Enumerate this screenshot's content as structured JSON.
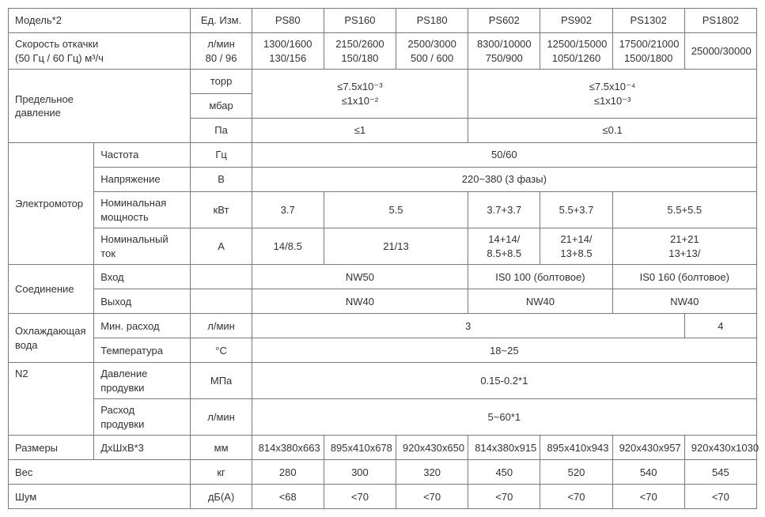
{
  "hdr": {
    "model": "Модель*2",
    "unit": "Ед. Изм.",
    "m0": "PS80",
    "m1": "PS160",
    "m2": "PS180",
    "m3": "PS602",
    "m4": "PS902",
    "m5": "PS1302",
    "m6": "PS1802"
  },
  "pump": {
    "label": "Скорость откачки\n(50 Гц / 60 Гц)   м³/ч",
    "label_l1": "Скорость откачки",
    "label_l2": "(50 Гц / 60 Гц)   м³/ч",
    "unit_l1": "л/мин",
    "unit_l2": "80 / 96",
    "v0_l1": "1300/1600",
    "v0_l2": "130/156",
    "v1_l1": "2150/2600",
    "v1_l2": "150/180",
    "v2_l1": "2500/3000",
    "v2_l2": "500 / 600",
    "v3_l1": "8300/10000",
    "v3_l2": "750/900",
    "v4_l1": "12500/15000",
    "v4_l2": "1050/1260",
    "v5_l1": "17500/21000",
    "v5_l2": "1500/1800",
    "v6_l1": "25000/30000",
    "v6_l2": ""
  },
  "limP": {
    "label_l1": "Предельное",
    "label_l2": "давление",
    "u1": "торр",
    "u2": "мбар",
    "u3": "Па",
    "torr_a": "≤7.5x10⁻³",
    "torr_b": "≤7.5x10⁻⁴",
    "mbar_a": "≤1x10⁻²",
    "mbar_b": "≤1x10⁻³",
    "pa_a": "≤1",
    "pa_b": "≤0.1"
  },
  "motor": {
    "label": "Электромотор",
    "freq_l": "Частота",
    "freq_u": "Гц",
    "freq_v": "50/60",
    "volt_l": "Напряжение",
    "volt_u": "В",
    "volt_v": "220~380 (3 фазы)",
    "pow_l_l1": "Номинальная",
    "pow_l_l2": "мощность",
    "pow_u": "кВт",
    "pow_v0": "3.7",
    "pow_v12": "5.5",
    "pow_v3": "3.7+3.7",
    "pow_v4": "5.5+3.7",
    "pow_v56": "5.5+5.5",
    "cur_l_l1": "Номинальный",
    "cur_l_l2": "ток",
    "cur_u": "А",
    "cur_v0": "14/8.5",
    "cur_v12": "21/13",
    "cur_v3_l1": "14+14/",
    "cur_v3_l2": "8.5+8.5",
    "cur_v4_l1": "21+14/",
    "cur_v4_l2": "13+8.5",
    "cur_v56_l1": "21+21",
    "cur_v56_l2": "13+13/"
  },
  "conn": {
    "label": "Соединение",
    "in_l": "Вход",
    "out_l": "Выход",
    "in_a": "NW50",
    "in_b": "IS0 100 (болтовое)",
    "in_c": "IS0 160 (болтовое)",
    "out_a": "NW40",
    "out_b": "NW40",
    "out_c": "NW40"
  },
  "cool": {
    "label_l1": "Охлаждающая",
    "label_l2": "вода",
    "flow_l": "Мин. расход",
    "flow_u": "л/мин",
    "flow_a": "3",
    "flow_b": "4",
    "temp_l": "Температура",
    "temp_u": "°С",
    "temp_v": "18~25"
  },
  "n2": {
    "label": "N2",
    "pres_l_l1": "Давление",
    "pres_l_l2": "продувки",
    "pres_u": "МПа",
    "pres_v": "0.15-0.2*1",
    "flow_l_l1": "Расход",
    "flow_l_l2": "продувки",
    "flow_u": "л/мин",
    "flow_v": "5~60*1"
  },
  "dim": {
    "label": "Размеры",
    "sub": "ДхШхВ*3",
    "unit": "мм",
    "v0": "814x380x663",
    "v1": "895x410x678",
    "v2": "920x430x650",
    "v3": "814x380x915",
    "v4": "895x410x943",
    "v5": "920x430x957",
    "v6": "920x430x1030"
  },
  "wt": {
    "label": "Вес",
    "unit": "кг",
    "v0": "280",
    "v1": "300",
    "v2": "320",
    "v3": "450",
    "v4": "520",
    "v5": "540",
    "v6": "545"
  },
  "noise": {
    "label": "Шум",
    "unit": "дБ(А)",
    "v0": "<68",
    "v1": "<70",
    "v2": "<70",
    "v3": "<70",
    "v4": "<70",
    "v5": "<70",
    "v6": "<70"
  }
}
